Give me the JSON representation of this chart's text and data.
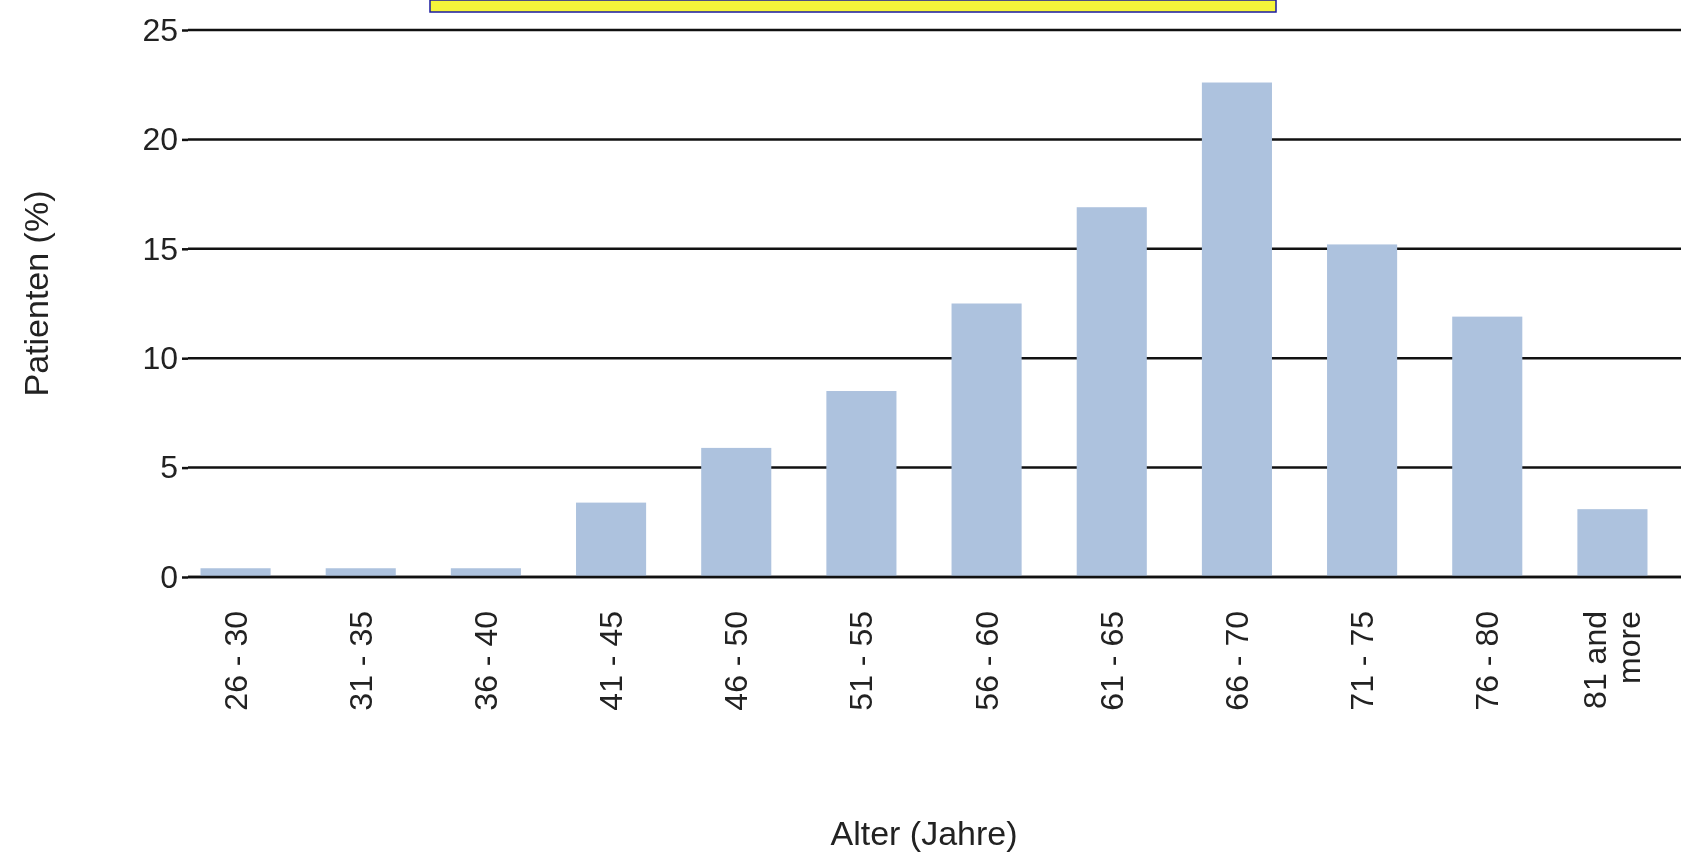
{
  "chart_data": {
    "type": "bar",
    "xlabel": "Alter (Jahre)",
    "ylabel": "Patienten (%)",
    "categories": [
      "26 - 30",
      "31 - 35",
      "36 - 40",
      "41 - 45",
      "46 - 50",
      "51 - 55",
      "56 - 60",
      "61 - 65",
      "66 - 70",
      "71 - 75",
      "76 - 80",
      "81 and more"
    ],
    "values": [
      0.4,
      0.4,
      0.4,
      3.4,
      5.9,
      8.5,
      12.5,
      16.9,
      22.6,
      15.2,
      11.9,
      3.1
    ],
    "color": "#adc2de",
    "ylim": [
      0,
      25
    ],
    "yticks": [
      0,
      5,
      10,
      15,
      20,
      25
    ],
    "grid": "y"
  }
}
